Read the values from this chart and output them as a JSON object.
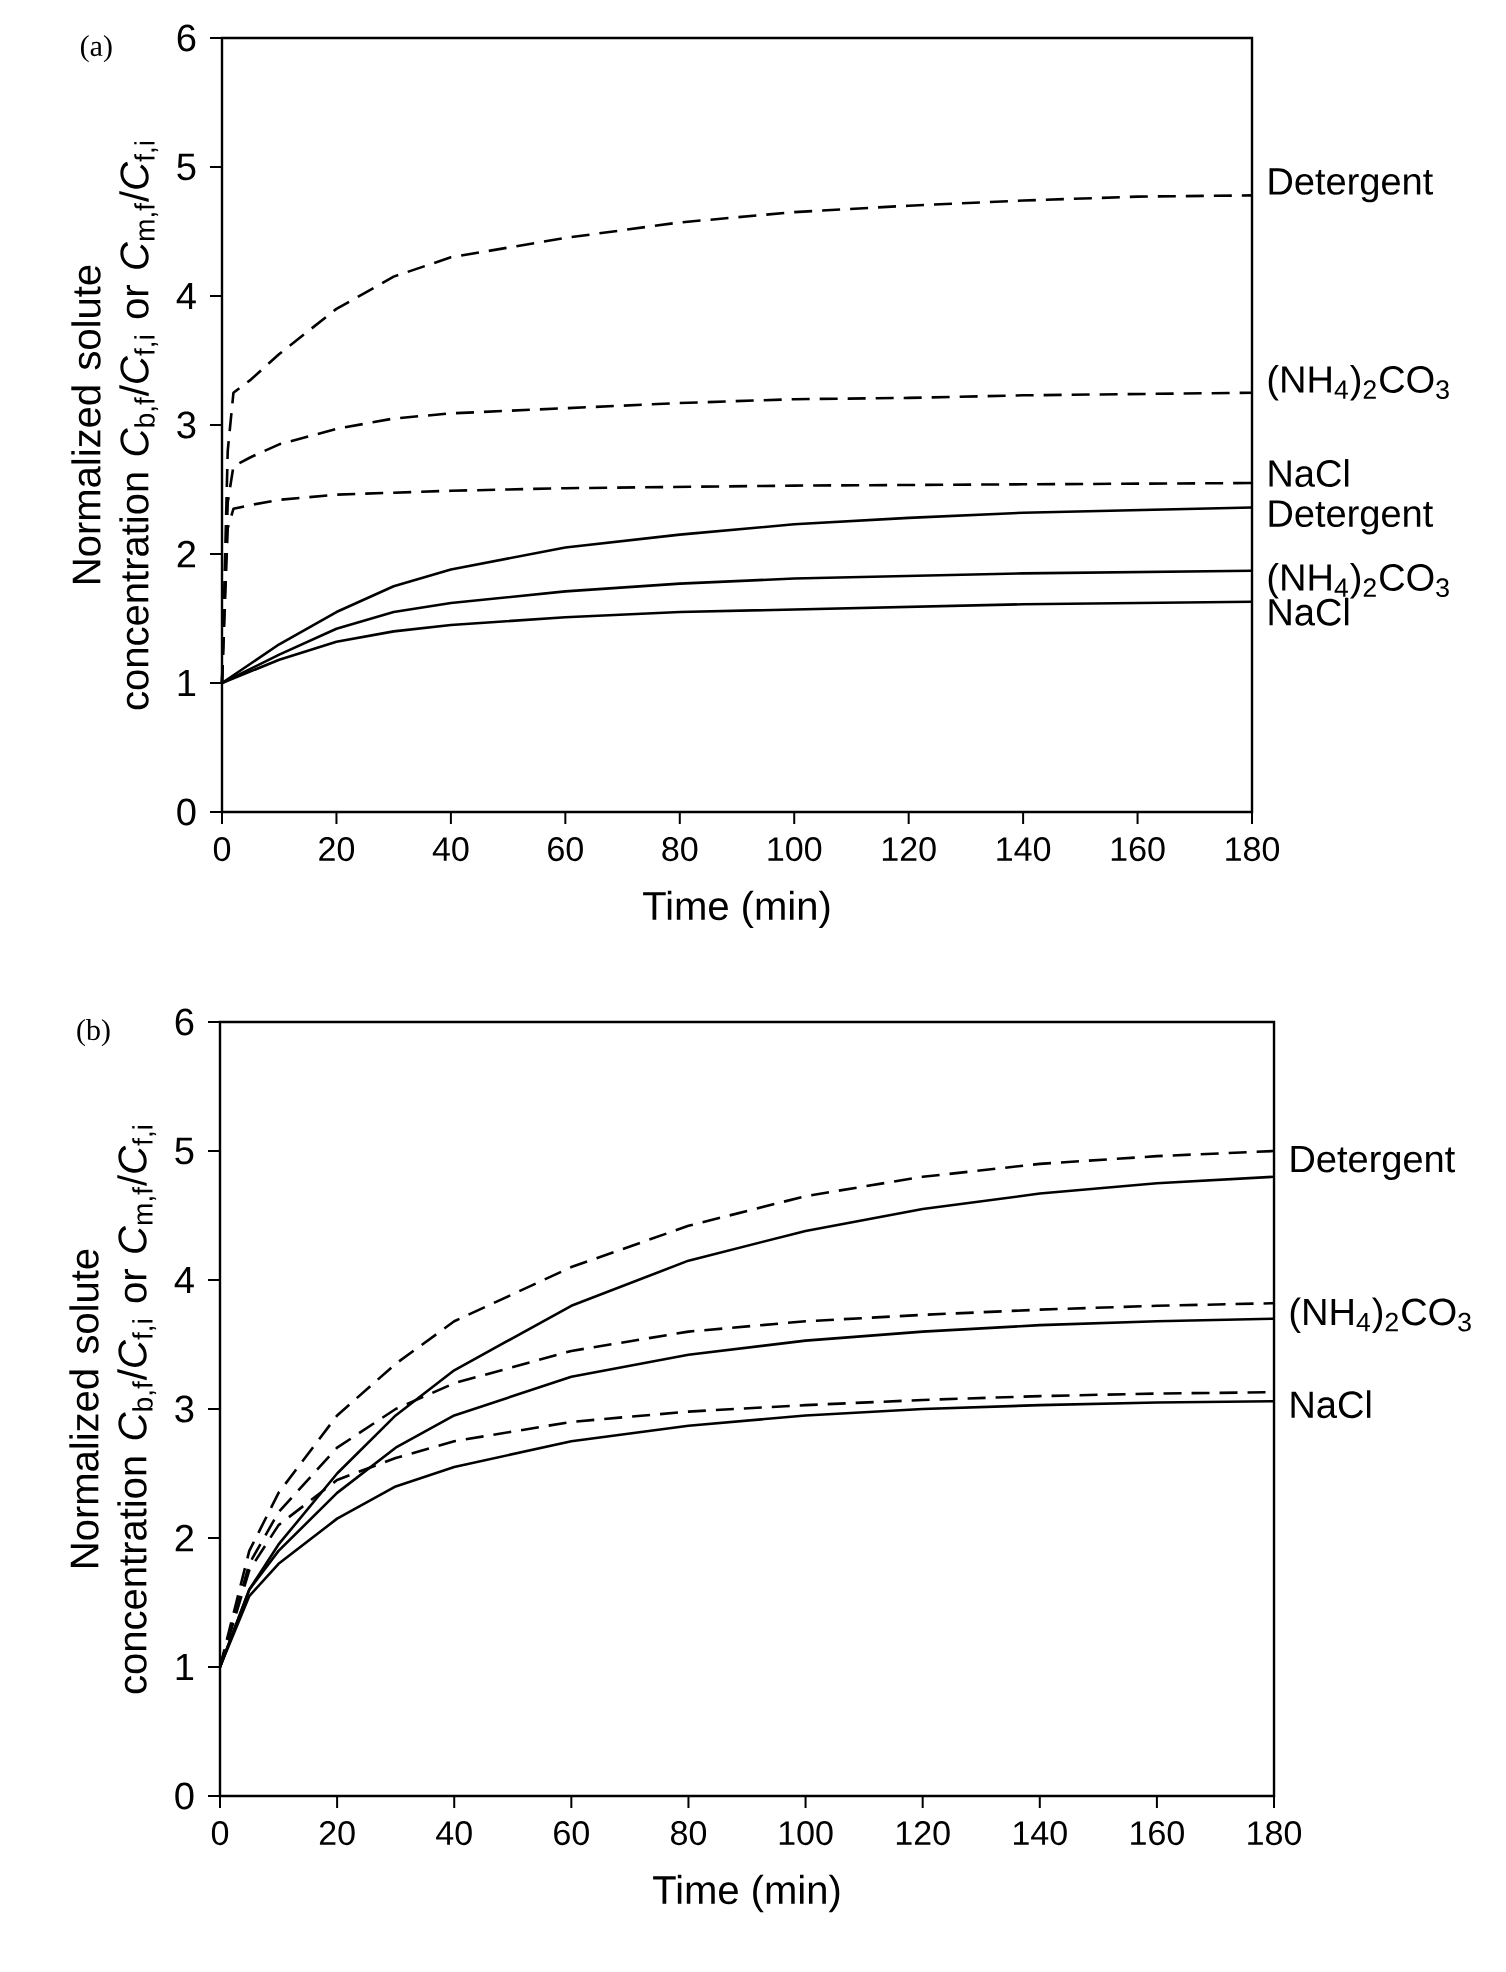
{
  "chart_data": [
    {
      "type": "line",
      "annotations": [
        "(a)"
      ],
      "xlabel": "Time (min)",
      "ylabel": "Normalized solute concentration *C*$_{b,f}$/*C*$_{f,i}$ or *C*$_{m,f}$/*C*$_{f,i}$",
      "xlim": [
        0,
        180
      ],
      "ylim": [
        0,
        6
      ],
      "xticks": [
        0,
        20,
        40,
        60,
        80,
        100,
        120,
        140,
        160,
        180
      ],
      "yticks": [
        0,
        1,
        2,
        3,
        4,
        5,
        6
      ],
      "series": [
        {
          "name": "Detergent",
          "color": "#000000",
          "line_style": "dashed",
          "x": [
            0,
            1,
            2,
            5,
            10,
            20,
            30,
            40,
            60,
            80,
            100,
            120,
            140,
            160,
            180
          ],
          "values": [
            1,
            2.8,
            3.25,
            3.35,
            3.55,
            3.9,
            4.15,
            4.3,
            4.45,
            4.57,
            4.65,
            4.7,
            4.74,
            4.77,
            4.78
          ]
        },
        {
          "name": "(NH$_{4}$)$_{2}$CO$_{3}$",
          "color": "#000000",
          "line_style": "dashed",
          "x": [
            0,
            1,
            2,
            5,
            10,
            20,
            30,
            40,
            60,
            80,
            100,
            120,
            140,
            160,
            180
          ],
          "values": [
            1,
            2.4,
            2.68,
            2.75,
            2.85,
            2.97,
            3.05,
            3.09,
            3.13,
            3.17,
            3.2,
            3.21,
            3.23,
            3.24,
            3.25
          ]
        },
        {
          "name": "NaCl",
          "color": "#000000",
          "line_style": "dashed",
          "x": [
            0,
            1,
            2,
            5,
            10,
            20,
            40,
            60,
            100,
            140,
            180
          ],
          "values": [
            1,
            2.2,
            2.35,
            2.38,
            2.42,
            2.46,
            2.49,
            2.51,
            2.53,
            2.54,
            2.55
          ]
        },
        {
          "name": "Detergent",
          "color": "#000000",
          "line_style": "solid",
          "x": [
            0,
            10,
            20,
            30,
            40,
            60,
            80,
            100,
            120,
            140,
            160,
            180
          ],
          "values": [
            1,
            1.3,
            1.55,
            1.75,
            1.88,
            2.05,
            2.15,
            2.23,
            2.28,
            2.32,
            2.34,
            2.36
          ]
        },
        {
          "name": "(NH$_{4}$)$_{2}$CO$_{3}$",
          "color": "#000000",
          "line_style": "solid",
          "x": [
            0,
            10,
            20,
            30,
            40,
            60,
            80,
            100,
            120,
            140,
            160,
            180
          ],
          "values": [
            1,
            1.22,
            1.42,
            1.55,
            1.62,
            1.71,
            1.77,
            1.81,
            1.83,
            1.85,
            1.86,
            1.87
          ]
        },
        {
          "name": "NaCl",
          "color": "#000000",
          "line_style": "solid",
          "x": [
            0,
            10,
            20,
            30,
            40,
            60,
            80,
            100,
            120,
            140,
            160,
            180
          ],
          "values": [
            1,
            1.18,
            1.32,
            1.4,
            1.45,
            1.51,
            1.55,
            1.57,
            1.59,
            1.61,
            1.62,
            1.63
          ]
        }
      ]
    },
    {
      "type": "line",
      "annotations": [
        "(b)"
      ],
      "xlabel": "Time (min)",
      "ylabel": "Normalized solute concentration *C*$_{b,f}$/*C*$_{f,i}$ or *C*$_{m,f}$/*C*$_{f,i}$",
      "xlim": [
        0,
        180
      ],
      "ylim": [
        0,
        6
      ],
      "xticks": [
        0,
        20,
        40,
        60,
        80,
        100,
        120,
        140,
        160,
        180
      ],
      "yticks": [
        0,
        1,
        2,
        3,
        4,
        5,
        6
      ],
      "series": [
        {
          "name": "Detergent",
          "color": "#000000",
          "line_style": "dashed",
          "x": [
            0,
            5,
            10,
            20,
            30,
            40,
            60,
            80,
            100,
            120,
            140,
            160,
            180
          ],
          "values": [
            1,
            1.9,
            2.35,
            2.95,
            3.35,
            3.68,
            4.1,
            4.42,
            4.65,
            4.8,
            4.9,
            4.96,
            5.0
          ]
        },
        {
          "color": "#000000",
          "line_style": "solid",
          "x": [
            0,
            5,
            10,
            20,
            30,
            40,
            60,
            80,
            100,
            120,
            140,
            160,
            180
          ],
          "values": [
            1,
            1.6,
            1.95,
            2.5,
            2.95,
            3.3,
            3.8,
            4.15,
            4.38,
            4.55,
            4.67,
            4.75,
            4.8
          ]
        },
        {
          "name": "(NH$_{4}$)$_{2}$CO$_{3}$",
          "color": "#000000",
          "line_style": "dashed",
          "x": [
            0,
            5,
            10,
            20,
            30,
            40,
            60,
            80,
            100,
            120,
            140,
            160,
            180
          ],
          "values": [
            1,
            1.8,
            2.2,
            2.7,
            3.0,
            3.2,
            3.45,
            3.6,
            3.68,
            3.73,
            3.77,
            3.8,
            3.82
          ]
        },
        {
          "color": "#000000",
          "line_style": "solid",
          "x": [
            0,
            5,
            10,
            20,
            30,
            40,
            60,
            80,
            100,
            120,
            140,
            160,
            180
          ],
          "values": [
            1,
            1.6,
            1.9,
            2.35,
            2.7,
            2.95,
            3.25,
            3.42,
            3.53,
            3.6,
            3.65,
            3.68,
            3.7
          ]
        },
        {
          "name": "NaCl",
          "color": "#000000",
          "line_style": "dashed",
          "x": [
            0,
            5,
            10,
            20,
            30,
            40,
            60,
            80,
            100,
            120,
            140,
            160,
            180
          ],
          "values": [
            1,
            1.75,
            2.1,
            2.45,
            2.62,
            2.75,
            2.9,
            2.98,
            3.03,
            3.07,
            3.1,
            3.12,
            3.13
          ]
        },
        {
          "color": "#000000",
          "line_style": "solid",
          "x": [
            0,
            5,
            10,
            20,
            30,
            40,
            60,
            80,
            100,
            120,
            140,
            160,
            180
          ],
          "values": [
            1,
            1.55,
            1.8,
            2.15,
            2.4,
            2.55,
            2.75,
            2.87,
            2.95,
            3.0,
            3.03,
            3.05,
            3.06
          ]
        }
      ]
    }
  ]
}
